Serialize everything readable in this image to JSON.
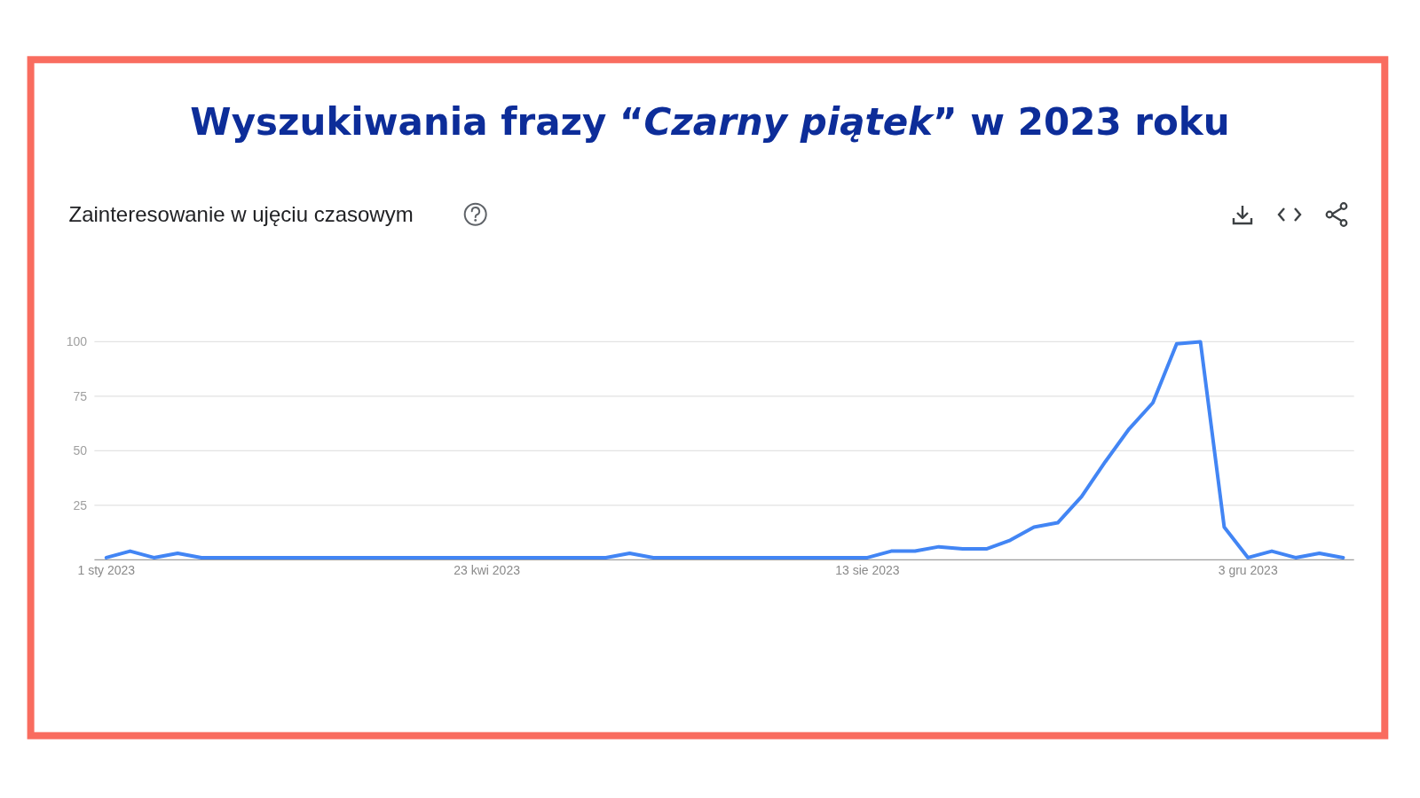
{
  "chart_data": {
    "type": "line",
    "title": "Wyszukiwania frazy “Czarny piątek” w 2023 roku",
    "subtitle": "Zainteresowanie w ujęciu czasowym",
    "x": [
      "2023-01-01",
      "2023-01-08",
      "2023-01-15",
      "2023-01-22",
      "2023-01-29",
      "2023-02-05",
      "2023-02-12",
      "2023-02-19",
      "2023-02-26",
      "2023-03-05",
      "2023-03-12",
      "2023-03-19",
      "2023-03-26",
      "2023-04-02",
      "2023-04-09",
      "2023-04-16",
      "2023-04-23",
      "2023-04-30",
      "2023-05-07",
      "2023-05-14",
      "2023-05-21",
      "2023-05-28",
      "2023-06-04",
      "2023-06-11",
      "2023-06-18",
      "2023-06-25",
      "2023-07-02",
      "2023-07-09",
      "2023-07-16",
      "2023-07-23",
      "2023-07-30",
      "2023-08-06",
      "2023-08-13",
      "2023-08-20",
      "2023-08-27",
      "2023-09-03",
      "2023-09-10",
      "2023-09-17",
      "2023-09-24",
      "2023-10-01",
      "2023-10-08",
      "2023-10-15",
      "2023-10-22",
      "2023-10-29",
      "2023-11-05",
      "2023-11-12",
      "2023-11-19",
      "2023-11-26",
      "2023-12-03",
      "2023-12-10",
      "2023-12-17",
      "2023-12-24",
      "2023-12-31"
    ],
    "values": [
      1,
      4,
      1,
      3,
      1,
      1,
      1,
      1,
      1,
      1,
      1,
      1,
      1,
      1,
      1,
      1,
      1,
      1,
      1,
      1,
      1,
      1,
      3,
      1,
      1,
      1,
      1,
      1,
      1,
      1,
      1,
      1,
      1,
      4,
      4,
      6,
      5,
      5,
      9,
      15,
      17,
      29,
      45,
      60,
      72,
      99,
      100,
      15,
      1,
      4,
      1,
      3,
      1
    ],
    "color": "#4285f4",
    "xlim": [
      "2022-12-28T12:00",
      "2024-01-03T05:00"
    ],
    "xticks": [
      {
        "value": "2023-01-01",
        "label": "1 sty 2023"
      },
      {
        "value": "2023-04-23",
        "label": "23 kwi 2023"
      },
      {
        "value": "2023-08-13",
        "label": "13 sie 2023"
      },
      {
        "value": "2023-12-03",
        "label": "3 gru 2023"
      }
    ],
    "ylim": [
      0,
      100
    ],
    "yticks": [
      25,
      50,
      75,
      100
    ],
    "grid": "y"
  }
}
